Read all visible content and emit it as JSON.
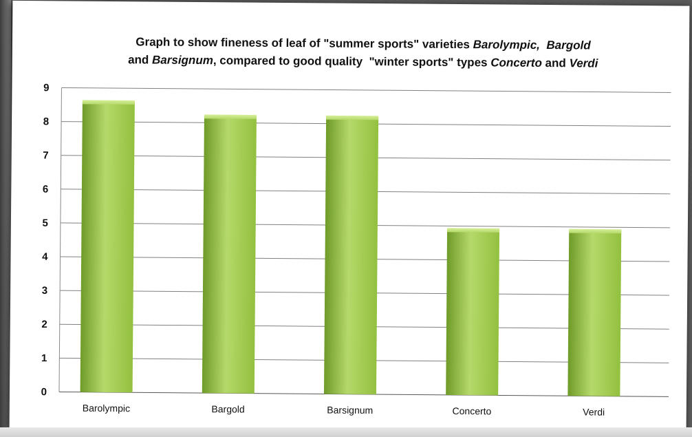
{
  "chart_data": {
    "type": "bar",
    "title": {
      "line1": [
        {
          "text": "Graph to show fineness of leaf of \"summer sports\" varieties ",
          "italic": false
        },
        {
          "text": "Barolympic,",
          "italic": true
        },
        {
          "text": "  ",
          "italic": false
        },
        {
          "text": "Bargold",
          "italic": true
        }
      ],
      "line2": [
        {
          "text": "and ",
          "italic": false
        },
        {
          "text": "Barsignum",
          "italic": true
        },
        {
          "text": ", compared to good quality  \"winter sports\" types ",
          "italic": false
        },
        {
          "text": "Concerto",
          "italic": true
        },
        {
          "text": " and ",
          "italic": false
        },
        {
          "text": "Verdi",
          "italic": true
        }
      ]
    },
    "categories": [
      "Barolympic",
      "Bargold",
      "Barsignum",
      "Concerto",
      "Verdi"
    ],
    "values": [
      8.6,
      8.2,
      8.2,
      4.9,
      4.9
    ],
    "ylim": [
      0,
      9
    ],
    "yticks": [
      "0",
      "1",
      "2",
      "3",
      "4",
      "5",
      "6",
      "7",
      "8",
      "9"
    ],
    "xlabel": "",
    "ylabel": "",
    "grid": true,
    "legend": "none",
    "colors": {
      "bar_light": "#b5d96a",
      "bar_mid": "#93c03f",
      "bar_dark": "#6f9b28",
      "grid": "#808080"
    }
  }
}
